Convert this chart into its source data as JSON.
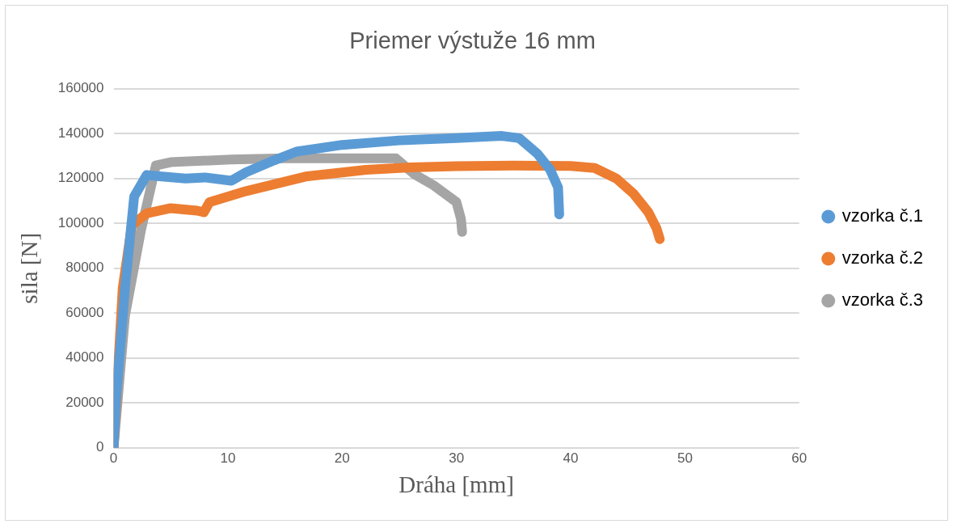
{
  "chart_data": {
    "type": "line",
    "title": "Priemer výstuže 16 mm",
    "xlabel": "Dráha [mm]",
    "ylabel": "sila [N]",
    "xlim": [
      0,
      60
    ],
    "xticks": [
      0,
      10,
      20,
      30,
      40,
      50,
      60
    ],
    "ylim": [
      0,
      160000
    ],
    "yticks": [
      0,
      20000,
      40000,
      60000,
      80000,
      100000,
      120000,
      140000,
      160000
    ],
    "grid": "y",
    "legend": "right",
    "marker": "none",
    "line_style": "solid",
    "series": [
      {
        "name": "vzorka č.1",
        "color": "#5b9bd5",
        "x": [
          0,
          0.2,
          1.0,
          1.8,
          2.9,
          4,
          6.3,
          8,
          10.3,
          11.6,
          14,
          16,
          20,
          25,
          30,
          34,
          35.5,
          37.1,
          38.2,
          38.9,
          39.0
        ],
        "values": [
          0,
          20900,
          71400,
          112000,
          121600,
          121000,
          120000,
          120500,
          119000,
          122800,
          128000,
          132000,
          135000,
          137000,
          138000,
          139000,
          138000,
          131000,
          124000,
          116000,
          104000
        ]
      },
      {
        "name": "vzorka č.2",
        "color": "#ed7d31",
        "x": [
          0,
          0.8,
          1.6,
          2.9,
          5,
          7.3,
          7.9,
          8.4,
          11.6,
          16.8,
          22.1,
          26,
          30,
          35,
          40,
          42.1,
          44,
          45.5,
          46.8,
          47.5,
          47.8
        ],
        "values": [
          0,
          71400,
          99200,
          104500,
          106800,
          105700,
          105000,
          109500,
          114400,
          120900,
          123900,
          125000,
          125500,
          125800,
          125600,
          124700,
          120000,
          113300,
          105000,
          98000,
          93000
        ]
      },
      {
        "name": "vzorka č.3",
        "color": "#a5a5a5",
        "x": [
          0,
          1.0,
          2.4,
          3.7,
          5,
          10.3,
          15,
          20,
          24.7,
          26.3,
          28,
          30,
          30.4,
          30.5
        ],
        "values": [
          0,
          58900,
          97000,
          125800,
          127300,
          128500,
          129000,
          129000,
          129000,
          122000,
          117000,
          109500,
          102000,
          96200
        ]
      }
    ]
  }
}
